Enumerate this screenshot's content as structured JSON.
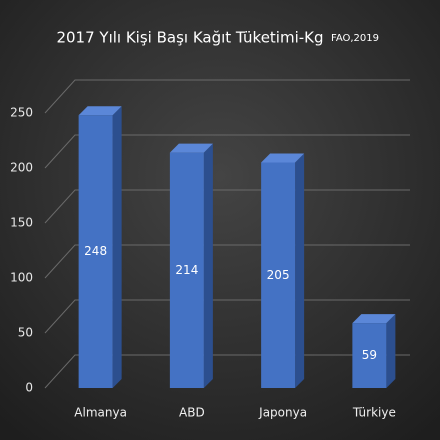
{
  "chart_data": {
    "type": "bar",
    "title": "2017 Yılı Kişi Başı Kağıt Tüketimi-Kg",
    "source": "FAO,2019",
    "categories": [
      "Almanya",
      "ABD",
      "Japonya",
      "Türkiye"
    ],
    "values": [
      248,
      214,
      205,
      59
    ],
    "color": "#4472c4",
    "ylim": [
      0,
      250
    ],
    "yticks": [
      0,
      50,
      100,
      150,
      200,
      250
    ],
    "grid": true
  }
}
